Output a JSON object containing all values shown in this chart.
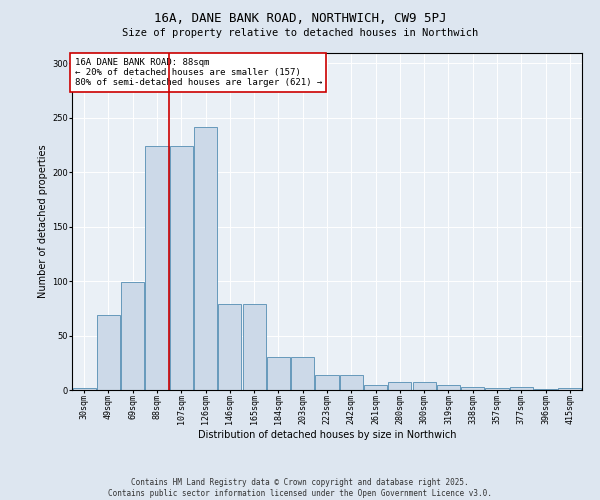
{
  "title": "16A, DANE BANK ROAD, NORTHWICH, CW9 5PJ",
  "subtitle": "Size of property relative to detached houses in Northwich",
  "xlabel": "Distribution of detached houses by size in Northwich",
  "ylabel": "Number of detached properties",
  "bar_labels": [
    "30sqm",
    "49sqm",
    "69sqm",
    "88sqm",
    "107sqm",
    "126sqm",
    "146sqm",
    "165sqm",
    "184sqm",
    "203sqm",
    "223sqm",
    "242sqm",
    "261sqm",
    "280sqm",
    "300sqm",
    "319sqm",
    "338sqm",
    "357sqm",
    "377sqm",
    "396sqm",
    "415sqm"
  ],
  "bar_values": [
    2,
    69,
    99,
    224,
    224,
    242,
    79,
    79,
    30,
    30,
    14,
    14,
    5,
    7,
    7,
    5,
    3,
    2,
    3,
    1,
    2
  ],
  "bar_color": "#ccd9e8",
  "bar_edge_color": "#6699bb",
  "vline_x": 3.5,
  "vline_color": "#cc0000",
  "annotation_text": "16A DANE BANK ROAD: 88sqm\n← 20% of detached houses are smaller (157)\n80% of semi-detached houses are larger (621) →",
  "annotation_box_color": "#ffffff",
  "annotation_box_edge": "#cc0000",
  "ylim": [
    0,
    310
  ],
  "yticks": [
    0,
    50,
    100,
    150,
    200,
    250,
    300
  ],
  "footer_line1": "Contains HM Land Registry data © Crown copyright and database right 2025.",
  "footer_line2": "Contains public sector information licensed under the Open Government Licence v3.0.",
  "bg_color": "#dde6f0",
  "plot_bg_color": "#eaf0f6",
  "title_fontsize": 9,
  "subtitle_fontsize": 7.5,
  "tick_fontsize": 6,
  "ylabel_fontsize": 7,
  "xlabel_fontsize": 7,
  "footer_fontsize": 5.5,
  "annot_fontsize": 6.5
}
